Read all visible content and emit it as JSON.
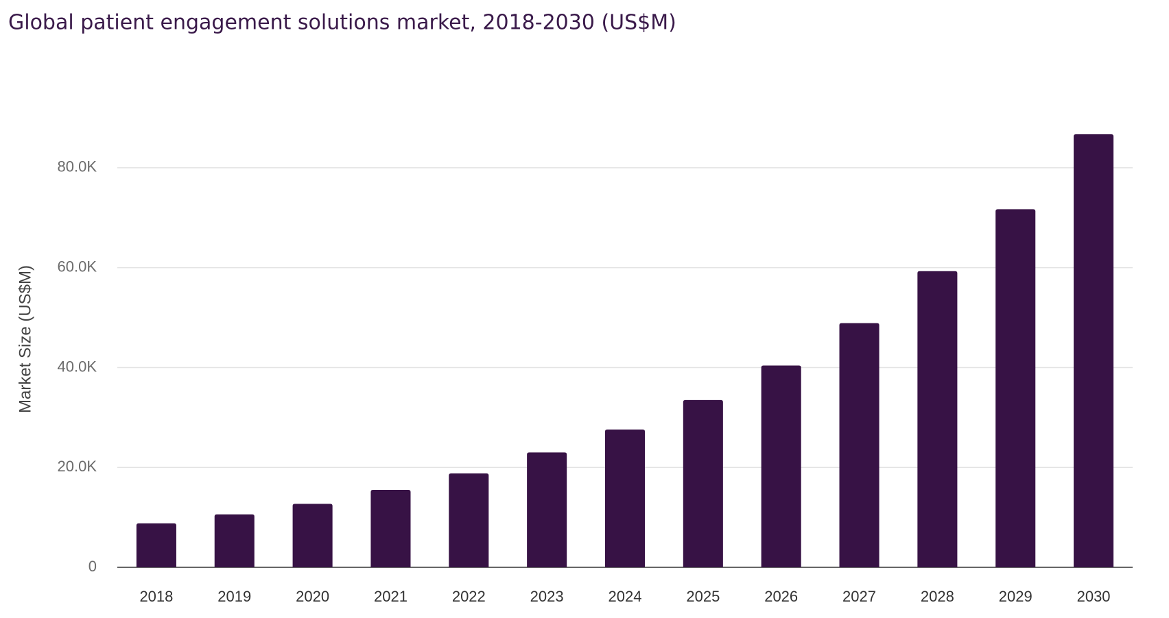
{
  "chart_data": {
    "type": "bar",
    "title": "Global patient engagement solutions market, 2018-2030 (US$M)",
    "y_label": "Market Size (US$M)",
    "categories": [
      "2018",
      "2019",
      "2020",
      "2021",
      "2022",
      "2023",
      "2024",
      "2025",
      "2026",
      "2027",
      "2028",
      "2029",
      "2030"
    ],
    "values": [
      8800,
      10600,
      12700,
      15500,
      18800,
      23000,
      27600,
      33500,
      40400,
      48900,
      59300,
      71700,
      86700
    ],
    "color": "#371245",
    "ylim": [
      0,
      90000
    ],
    "yticks": [
      0,
      {
        "value": 20000,
        "label": "20.0K"
      },
      {
        "value": 40000,
        "label": "40.0K"
      },
      {
        "value": 60000,
        "label": "60.0K"
      },
      {
        "value": 80000,
        "label": "80.0K"
      }
    ],
    "grid": true
  }
}
